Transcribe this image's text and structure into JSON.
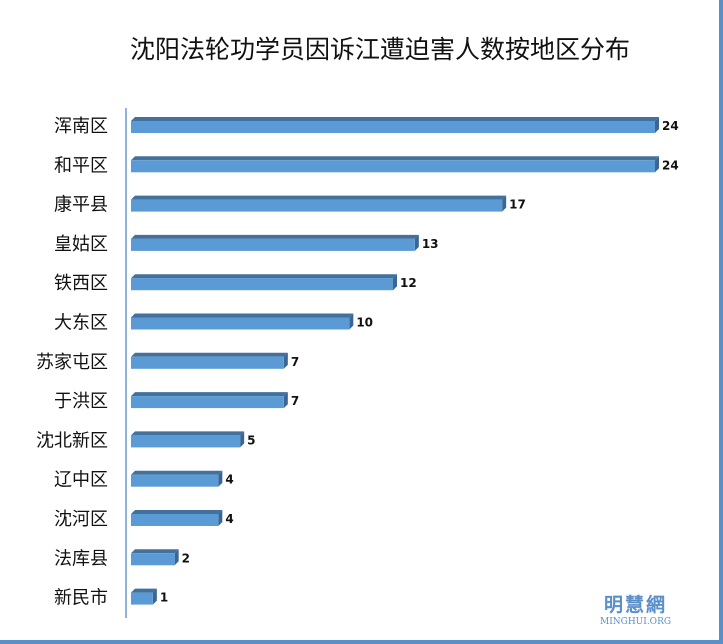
{
  "chart_data": {
    "type": "bar",
    "orientation": "horizontal",
    "title": "沈阳法轮功学员因诉江遭迫害人数按地区分布",
    "categories": [
      "浑南区",
      "和平区",
      "康平县",
      "皇姑区",
      "铁西区",
      "大东区",
      "苏家屯区",
      "于洪区",
      "沈北新区",
      "辽中区",
      "沈河区",
      "法库县",
      "新民市"
    ],
    "values": [
      24,
      24,
      17,
      13,
      12,
      10,
      7,
      7,
      5,
      4,
      4,
      2,
      1
    ],
    "xlim": [
      0,
      24
    ],
    "bar_color": "#5b9bd5",
    "bar_top_color": "#41719c"
  },
  "watermark": {
    "cn": "明慧網",
    "en": "MINGHUI.ORG"
  }
}
